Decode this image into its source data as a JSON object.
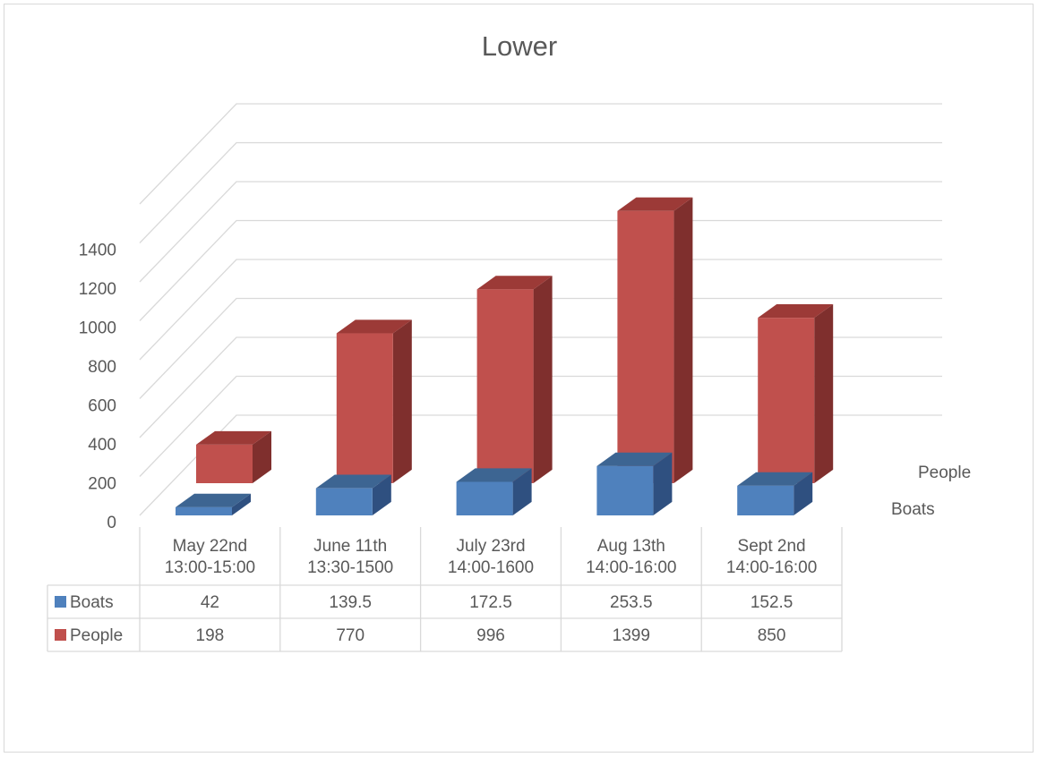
{
  "chart_data": {
    "type": "bar",
    "title": "Lower",
    "categories": [
      [
        "May 22nd",
        "13:00-15:00"
      ],
      [
        "June 11th",
        "13:30-1500"
      ],
      [
        "July 23rd",
        "14:00-1600"
      ],
      [
        "Aug 13th",
        "14:00-16:00"
      ],
      [
        "Sept 2nd",
        "14:00-16:00"
      ]
    ],
    "series": [
      {
        "name": "Boats",
        "values": [
          42,
          139.5,
          172.5,
          253.5,
          152.5
        ],
        "color": "#4f81bd",
        "colorTop": "#3d6592",
        "colorSide": "#2f5080"
      },
      {
        "name": "People",
        "values": [
          198,
          770,
          996,
          1399,
          850
        ],
        "color": "#c0504d",
        "colorTop": "#9c3a37",
        "colorSide": "#7f2f2d"
      }
    ],
    "yticks": [
      0,
      200,
      400,
      600,
      800,
      1000,
      1200,
      1400
    ],
    "ylim": [
      0,
      1400
    ],
    "grid": true,
    "legend": "data-table",
    "depth_labels": [
      "People",
      "Boats"
    ]
  }
}
